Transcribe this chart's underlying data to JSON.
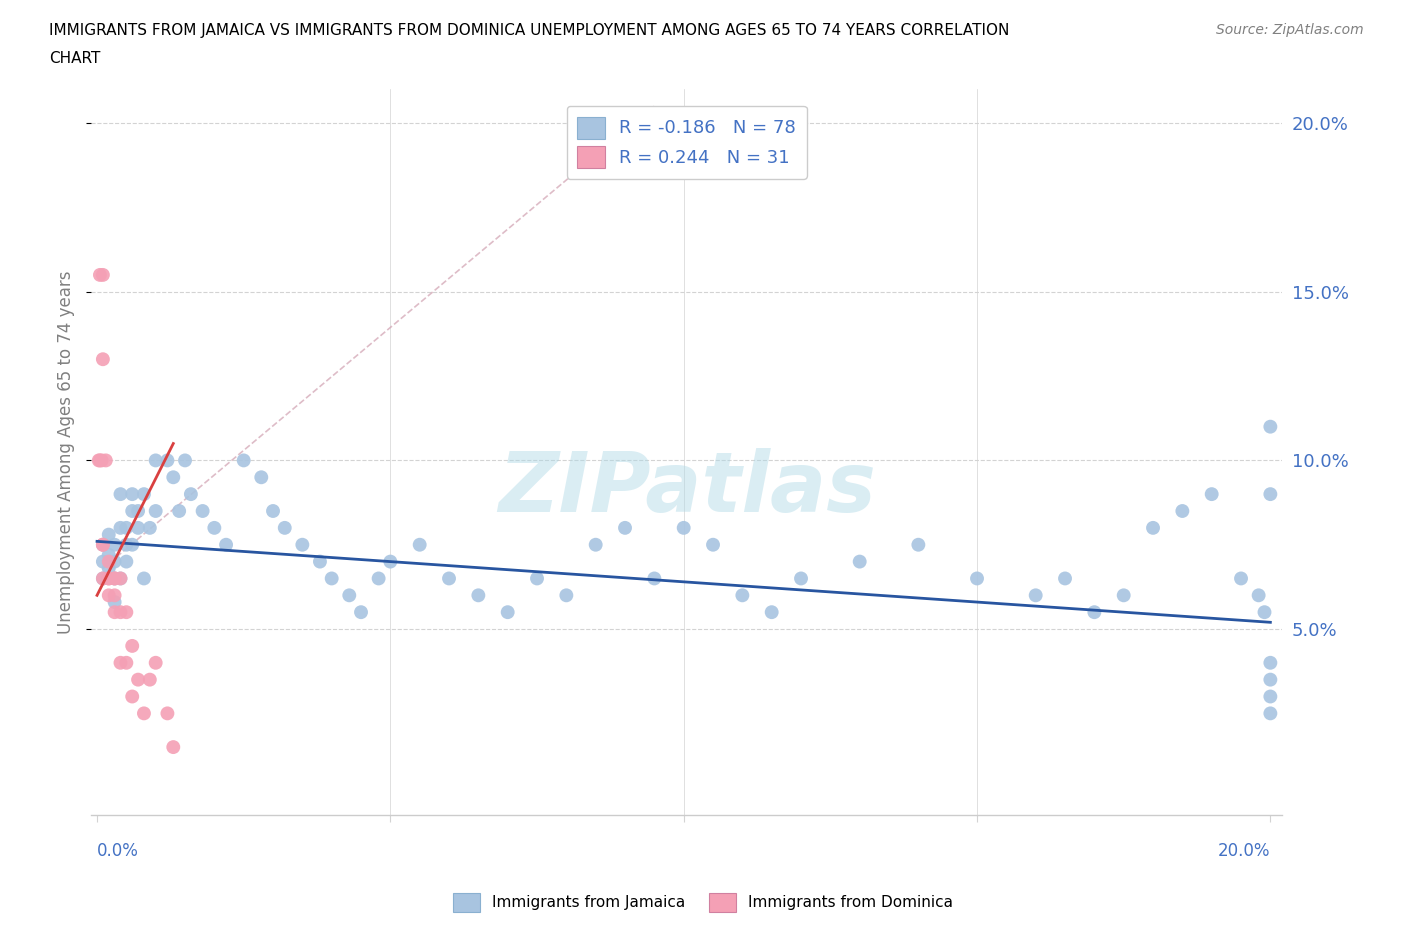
{
  "title_line1": "IMMIGRANTS FROM JAMAICA VS IMMIGRANTS FROM DOMINICA UNEMPLOYMENT AMONG AGES 65 TO 74 YEARS CORRELATION",
  "title_line2": "CHART",
  "source": "Source: ZipAtlas.com",
  "ylabel": "Unemployment Among Ages 65 to 74 years",
  "legend_jamaica": "Immigrants from Jamaica",
  "legend_dominica": "Immigrants from Dominica",
  "R_jamaica": -0.186,
  "N_jamaica": 78,
  "R_dominica": 0.244,
  "N_dominica": 31,
  "jamaica_color": "#a8c4e0",
  "dominica_color": "#f4a0b5",
  "jamaica_line_color": "#2855a0",
  "dominica_line_color": "#d94040",
  "watermark": "ZIPatlas",
  "xmin": 0.0,
  "xmax": 0.2,
  "ymin": 0.0,
  "ymax": 0.21,
  "yticks": [
    0.05,
    0.1,
    0.15,
    0.2
  ],
  "ytick_labels": [
    "5.0%",
    "10.0%",
    "15.0%",
    "20.0%"
  ],
  "jamaica_x": [
    0.001,
    0.001,
    0.001,
    0.002,
    0.002,
    0.002,
    0.003,
    0.003,
    0.003,
    0.003,
    0.004,
    0.004,
    0.004,
    0.005,
    0.005,
    0.005,
    0.006,
    0.006,
    0.006,
    0.007,
    0.007,
    0.008,
    0.008,
    0.009,
    0.01,
    0.01,
    0.012,
    0.013,
    0.014,
    0.015,
    0.016,
    0.018,
    0.02,
    0.022,
    0.025,
    0.028,
    0.03,
    0.032,
    0.035,
    0.038,
    0.04,
    0.043,
    0.045,
    0.048,
    0.05,
    0.055,
    0.06,
    0.065,
    0.07,
    0.075,
    0.08,
    0.085,
    0.09,
    0.095,
    0.1,
    0.105,
    0.11,
    0.115,
    0.12,
    0.13,
    0.14,
    0.15,
    0.16,
    0.165,
    0.17,
    0.175,
    0.18,
    0.185,
    0.19,
    0.195,
    0.198,
    0.199,
    0.2,
    0.2,
    0.2,
    0.2,
    0.2,
    0.2
  ],
  "jamaica_y": [
    0.075,
    0.065,
    0.07,
    0.068,
    0.072,
    0.078,
    0.065,
    0.07,
    0.075,
    0.058,
    0.08,
    0.09,
    0.065,
    0.07,
    0.075,
    0.08,
    0.085,
    0.09,
    0.075,
    0.08,
    0.085,
    0.09,
    0.065,
    0.08,
    0.1,
    0.085,
    0.1,
    0.095,
    0.085,
    0.1,
    0.09,
    0.085,
    0.08,
    0.075,
    0.1,
    0.095,
    0.085,
    0.08,
    0.075,
    0.07,
    0.065,
    0.06,
    0.055,
    0.065,
    0.07,
    0.075,
    0.065,
    0.06,
    0.055,
    0.065,
    0.06,
    0.075,
    0.08,
    0.065,
    0.08,
    0.075,
    0.06,
    0.055,
    0.065,
    0.07,
    0.075,
    0.065,
    0.06,
    0.065,
    0.055,
    0.06,
    0.08,
    0.085,
    0.09,
    0.065,
    0.06,
    0.055,
    0.09,
    0.11,
    0.03,
    0.025,
    0.035,
    0.04
  ],
  "dominica_x": [
    0.0003,
    0.0005,
    0.0005,
    0.0008,
    0.001,
    0.001,
    0.001,
    0.001,
    0.001,
    0.0015,
    0.002,
    0.002,
    0.002,
    0.002,
    0.003,
    0.003,
    0.003,
    0.003,
    0.004,
    0.004,
    0.004,
    0.005,
    0.005,
    0.006,
    0.006,
    0.007,
    0.008,
    0.009,
    0.01,
    0.012,
    0.013
  ],
  "dominica_y": [
    0.1,
    0.155,
    0.1,
    0.1,
    0.155,
    0.13,
    0.075,
    0.065,
    0.075,
    0.1,
    0.065,
    0.07,
    0.06,
    0.065,
    0.065,
    0.06,
    0.065,
    0.055,
    0.065,
    0.04,
    0.055,
    0.055,
    0.04,
    0.045,
    0.03,
    0.035,
    0.025,
    0.035,
    0.04,
    0.025,
    0.015
  ]
}
